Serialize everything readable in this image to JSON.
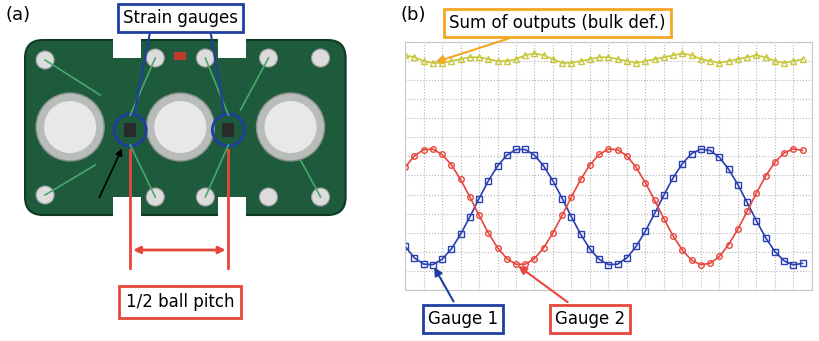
{
  "panel_labels": [
    "(a)",
    "(b)"
  ],
  "photo": {
    "callout": "Strain gauges",
    "dimension": "1/2 ball pitch"
  },
  "chart_data": {
    "type": "line",
    "grid": true,
    "tick_labels": false,
    "x": [
      0,
      0.5,
      1,
      1.5,
      2,
      2.5,
      3,
      3.5,
      4,
      4.5,
      5,
      5.5,
      6,
      6.5,
      7,
      7.5,
      8,
      8.5,
      9,
      9.5,
      10,
      10.5,
      11,
      11.5,
      12,
      12.5,
      13,
      13.5,
      14,
      14.5,
      15,
      15.5,
      16,
      16.5,
      17,
      17.5,
      18,
      18.5,
      19,
      19.5,
      20,
      20.5,
      21,
      21.5
    ],
    "xlim": [
      0,
      22
    ],
    "xticks": [
      0,
      1,
      2,
      3,
      4,
      5,
      6,
      7,
      8,
      9,
      10,
      11,
      12,
      13,
      14,
      15,
      16,
      17,
      18,
      19,
      20,
      21,
      22
    ],
    "ylim": [
      0,
      13
    ],
    "yticks": [
      0,
      1,
      2,
      3,
      4,
      5,
      6,
      7,
      8,
      9,
      10,
      11,
      12,
      13
    ],
    "series": [
      {
        "name": "Sum of outputs (bulk def.)",
        "color": "#c8c83c",
        "marker": "triangle",
        "line_style": "solid",
        "values": [
          12.3,
          12.2,
          12.0,
          11.9,
          11.9,
          12.0,
          12.1,
          12.2,
          12.2,
          12.1,
          12.0,
          12.0,
          12.1,
          12.3,
          12.4,
          12.3,
          12.1,
          11.9,
          11.9,
          12.0,
          12.1,
          12.2,
          12.2,
          12.1,
          12.0,
          11.9,
          12.0,
          12.1,
          12.2,
          12.3,
          12.4,
          12.3,
          12.1,
          12.0,
          11.9,
          12.0,
          12.1,
          12.2,
          12.3,
          12.2,
          12.0,
          11.9,
          12.0,
          12.1
        ]
      },
      {
        "name": "Gauge 1",
        "color": "#2a3fb0",
        "marker": "square",
        "line_style": "solid",
        "values": [
          2.28,
          1.68,
          1.35,
          1.32,
          1.6,
          2.14,
          2.91,
          3.82,
          4.79,
          5.71,
          6.49,
          7.06,
          7.36,
          7.36,
          7.06,
          6.49,
          5.71,
          4.79,
          3.82,
          2.91,
          2.14,
          1.6,
          1.32,
          1.35,
          1.68,
          2.28,
          3.08,
          4.01,
          4.97,
          5.88,
          6.62,
          7.15,
          7.38,
          7.31,
          6.95,
          6.33,
          5.52,
          4.59,
          3.63,
          2.74,
          2.01,
          1.52,
          1.31,
          1.39
        ]
      },
      {
        "name": "Gauge 2",
        "color": "#e8463c",
        "marker": "circle",
        "line_style": "solid",
        "values": [
          6.42,
          7.02,
          7.35,
          7.38,
          7.1,
          6.56,
          5.79,
          4.88,
          3.91,
          2.99,
          2.21,
          1.64,
          1.34,
          1.34,
          1.64,
          2.21,
          2.99,
          3.91,
          4.88,
          5.79,
          6.56,
          7.1,
          7.38,
          7.35,
          7.02,
          6.42,
          5.62,
          4.69,
          3.73,
          2.82,
          2.08,
          1.55,
          1.32,
          1.39,
          1.75,
          2.37,
          3.18,
          4.11,
          5.07,
          5.96,
          6.69,
          7.18,
          7.39,
          7.31
        ]
      }
    ]
  }
}
